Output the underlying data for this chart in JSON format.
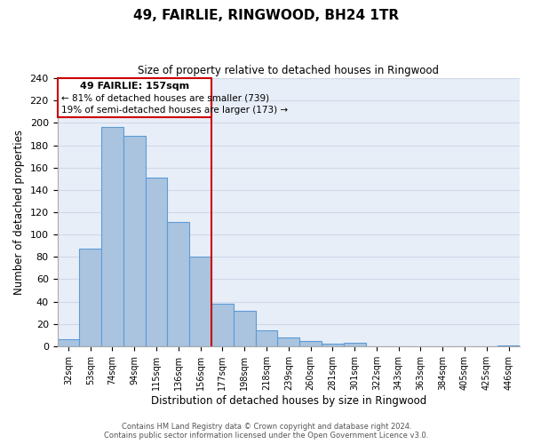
{
  "title": "49, FAIRLIE, RINGWOOD, BH24 1TR",
  "subtitle": "Size of property relative to detached houses in Ringwood",
  "xlabel": "Distribution of detached houses by size in Ringwood",
  "ylabel": "Number of detached properties",
  "bar_labels": [
    "32sqm",
    "53sqm",
    "74sqm",
    "94sqm",
    "115sqm",
    "136sqm",
    "156sqm",
    "177sqm",
    "198sqm",
    "218sqm",
    "239sqm",
    "260sqm",
    "281sqm",
    "301sqm",
    "322sqm",
    "343sqm",
    "363sqm",
    "384sqm",
    "405sqm",
    "425sqm",
    "446sqm"
  ],
  "bar_values": [
    6,
    87,
    196,
    188,
    151,
    111,
    80,
    38,
    32,
    14,
    8,
    5,
    2,
    3,
    0,
    0,
    0,
    0,
    0,
    0,
    1
  ],
  "bar_color": "#aac4e0",
  "bar_edge_color": "#5b9bd5",
  "property_line_color": "#cc0000",
  "property_line_bar_idx": 6,
  "ylim": [
    0,
    240
  ],
  "yticks": [
    0,
    20,
    40,
    60,
    80,
    100,
    120,
    140,
    160,
    180,
    200,
    220,
    240
  ],
  "annotation_title": "49 FAIRLIE: 157sqm",
  "annotation_line1": "← 81% of detached houses are smaller (739)",
  "annotation_line2": "19% of semi-detached houses are larger (173) →",
  "annotation_box_color": "#ffffff",
  "annotation_box_edge_color": "#cc0000",
  "footer_line1": "Contains HM Land Registry data © Crown copyright and database right 2024.",
  "footer_line2": "Contains public sector information licensed under the Open Government Licence v3.0.",
  "grid_color": "#d0d8e8",
  "background_color": "#e8eef8"
}
